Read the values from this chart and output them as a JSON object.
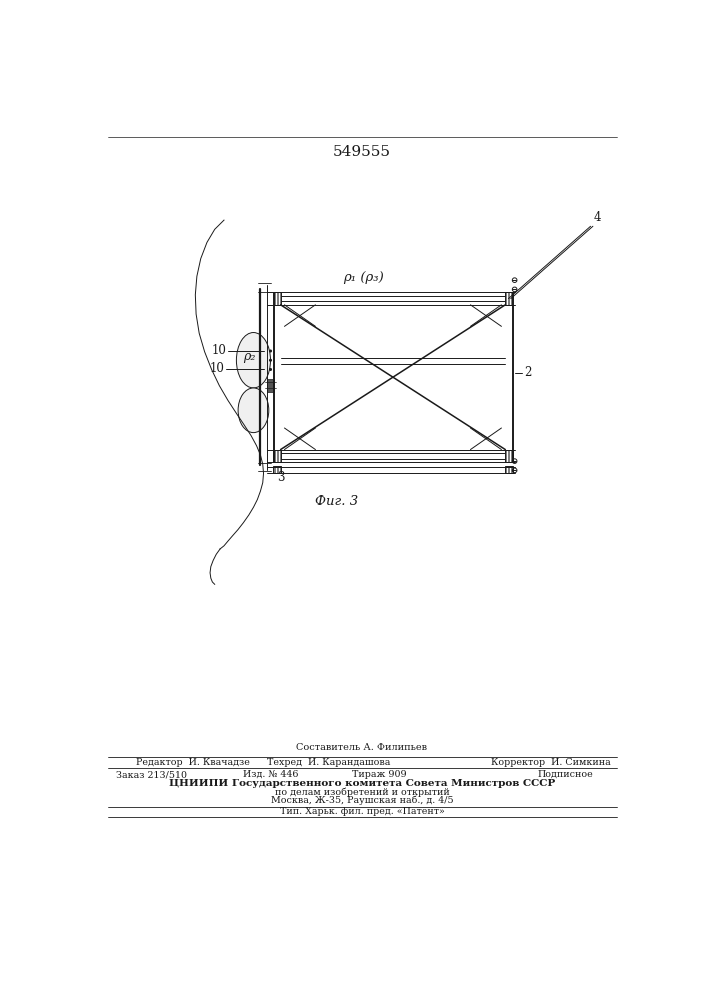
{
  "patent_number": "549555",
  "fig_label": "Фиг. 3",
  "background_color": "#ffffff",
  "line_color": "#1a1a1a",
  "label_2": "2",
  "label_3": "3",
  "label_4": "4",
  "label_10a": "10",
  "label_10b": "10",
  "label_p1p3": "ρ₁ (ρ₃)",
  "label_p2": "ρ₂",
  "footer_sestavitel": "Составитель А. Филипьев",
  "footer_redaktor": "Редактор  И. Квачадзе",
  "footer_tehred": "Техред  И. Карандашова",
  "footer_korrektor": "Корректор  И. Симкина",
  "footer_zakaz": "Заказ 213/510",
  "footer_izd": "Изд. № 446",
  "footer_tirazh": "Тираж 909",
  "footer_podpisnoe": "Подписное",
  "footer_cniipи": "ЦНИИПИ Государственного комитета Совета Министров СССР",
  "footer_podela": "по делам изобретений и открытий",
  "footer_moskva": "Москва, Ж-35, Раушская наб., д. 4/5",
  "footer_tip": "Тип. Харьк. фил. пред. «Патент»"
}
